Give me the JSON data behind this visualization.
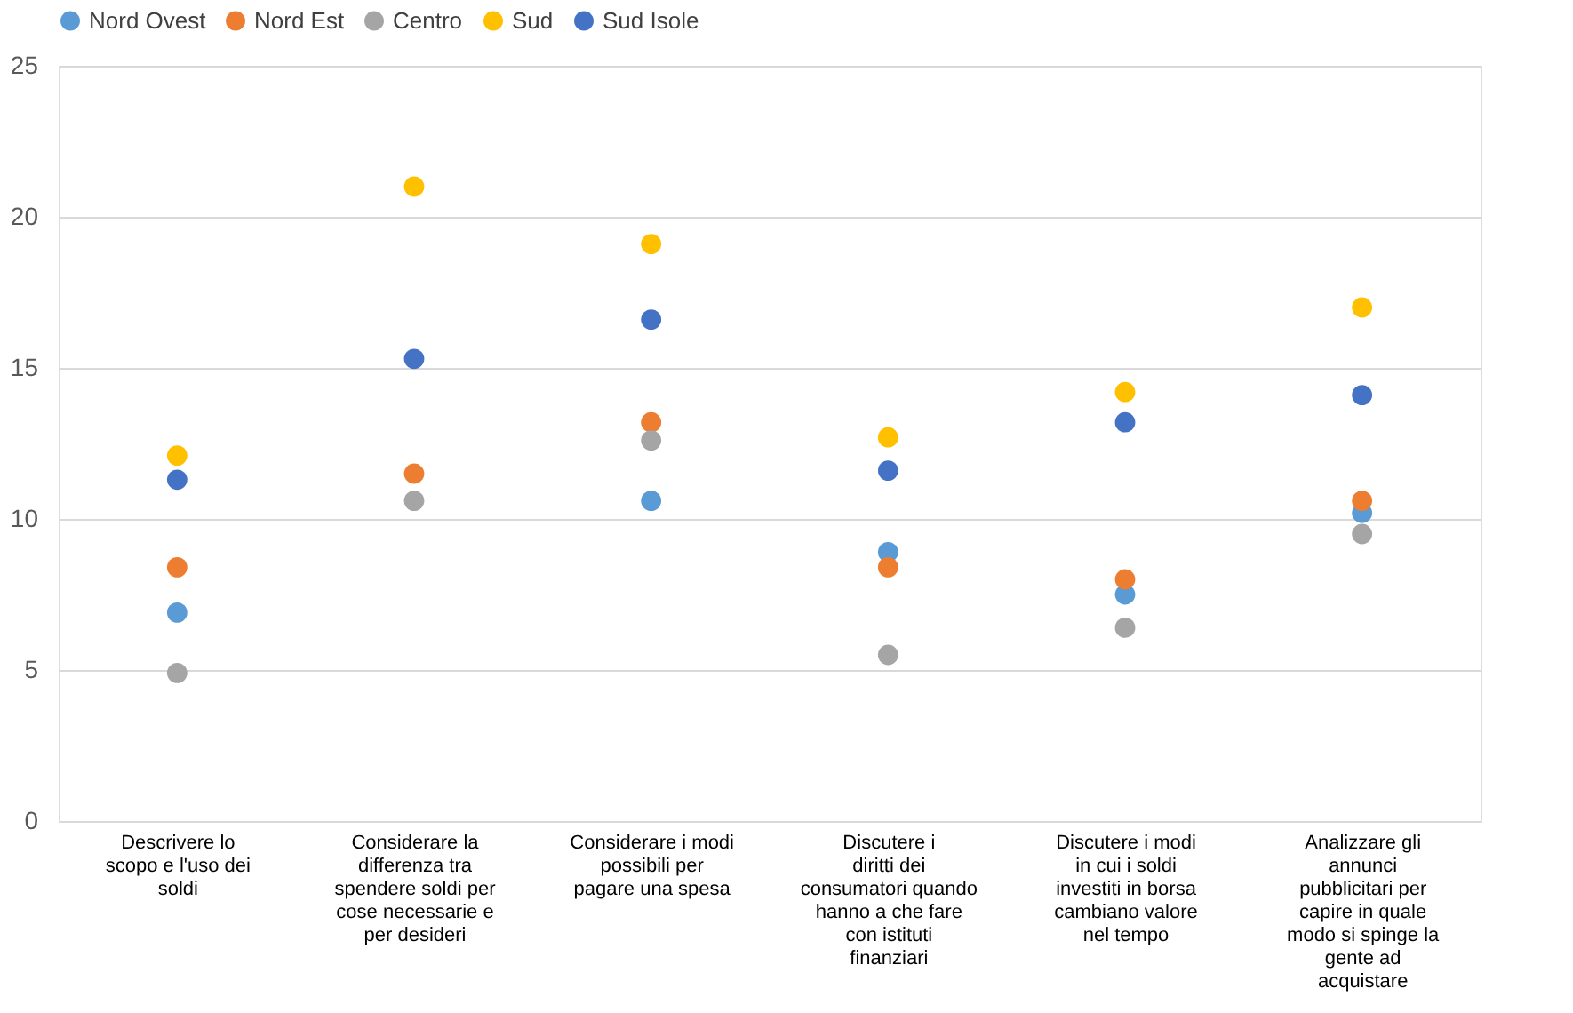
{
  "chart_data": {
    "type": "scatter",
    "categories": [
      "Descrivere lo scopo e l'uso dei soldi",
      "Considerare la differenza tra spendere soldi per cose necessarie e per desideri",
      "Considerare i modi possibili per pagare una spesa",
      "Discutere i diritti dei consumatori quando hanno a che fare con istituti finanziari",
      "Discutere i modi in cui i soldi investiti in borsa cambiano valore nel tempo",
      "Analizzare gli annunci pubblicitari per capire in quale modo si spinge la gente ad acquistare"
    ],
    "series": [
      {
        "name": "Nord Ovest",
        "color": "#5b9bd5",
        "values": [
          6.9,
          null,
          10.6,
          8.9,
          7.5,
          10.2
        ]
      },
      {
        "name": "Nord Est",
        "color": "#ed7d31",
        "values": [
          8.4,
          11.5,
          13.2,
          8.4,
          8.0,
          10.6
        ]
      },
      {
        "name": "Centro",
        "color": "#a5a5a5",
        "values": [
          4.9,
          10.6,
          12.6,
          5.5,
          6.4,
          9.5
        ]
      },
      {
        "name": "Sud",
        "color": "#ffc000",
        "values": [
          12.1,
          21.0,
          19.1,
          12.7,
          14.2,
          17.0
        ]
      },
      {
        "name": "Sud Isole",
        "color": "#4472c4",
        "values": [
          11.3,
          15.3,
          16.6,
          11.6,
          13.2,
          14.1
        ]
      }
    ],
    "ylim": [
      0,
      25
    ],
    "yticks": [
      0,
      5,
      10,
      15,
      20,
      25
    ],
    "grid": "y",
    "legend": "top",
    "marker": "circle"
  }
}
